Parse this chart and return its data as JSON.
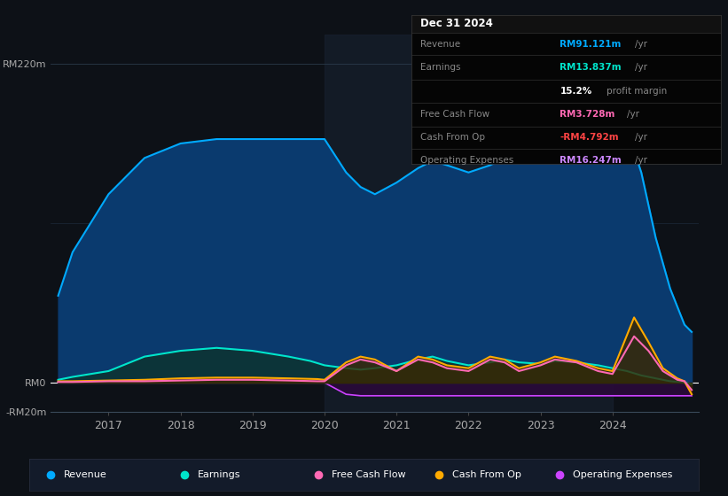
{
  "bg_color": "#0d1117",
  "plot_bg_color": "#0d1117",
  "title_box": {
    "date": "Dec 31 2024",
    "rows": [
      {
        "label": "Revenue",
        "value": "RM91.121m",
        "unit": "/yr",
        "color": "#00aaff"
      },
      {
        "label": "Earnings",
        "value": "RM13.837m",
        "unit": "/yr",
        "color": "#00e5cc"
      },
      {
        "label": "",
        "value": "15.2%",
        "unit": " profit margin",
        "color": "#ffffff"
      },
      {
        "label": "Free Cash Flow",
        "value": "RM3.728m",
        "unit": "/yr",
        "color": "#ff69b4"
      },
      {
        "label": "Cash From Op",
        "value": "-RM4.792m",
        "unit": "/yr",
        "color": "#ff4444"
      },
      {
        "label": "Operating Expenses",
        "value": "RM16.247m",
        "unit": "/yr",
        "color": "#cc88ff"
      }
    ]
  },
  "ylim": [
    -20,
    240
  ],
  "yticks": [
    -20,
    0,
    220
  ],
  "ytick_labels": [
    "-RM20m",
    "RM0",
    "RM220m"
  ],
  "xlim": [
    2016.2,
    2025.2
  ],
  "xticks": [
    2017,
    2018,
    2019,
    2020,
    2021,
    2022,
    2023,
    2024
  ],
  "legend": [
    {
      "label": "Revenue",
      "color": "#00aaff"
    },
    {
      "label": "Earnings",
      "color": "#00e5cc"
    },
    {
      "label": "Free Cash Flow",
      "color": "#ff69b4"
    },
    {
      "label": "Cash From Op",
      "color": "#ffaa00"
    },
    {
      "label": "Operating Expenses",
      "color": "#cc44ff"
    }
  ],
  "revenue": {
    "x": [
      2016.3,
      2016.5,
      2017.0,
      2017.5,
      2018.0,
      2018.5,
      2019.0,
      2019.5,
      2019.9,
      2020.0,
      2020.3,
      2020.5,
      2020.7,
      2021.0,
      2021.3,
      2021.5,
      2021.7,
      2022.0,
      2022.3,
      2022.5,
      2022.8,
      2023.0,
      2023.3,
      2023.5,
      2023.7,
      2024.0,
      2024.2,
      2024.4,
      2024.6,
      2024.8,
      2025.0,
      2025.1
    ],
    "y": [
      60,
      90,
      130,
      155,
      165,
      168,
      168,
      168,
      168,
      168,
      145,
      135,
      130,
      138,
      148,
      153,
      150,
      145,
      150,
      155,
      158,
      162,
      175,
      185,
      188,
      188,
      175,
      145,
      100,
      65,
      40,
      35
    ],
    "color": "#00aaff",
    "fill_color": "#0a3a6e"
  },
  "earnings": {
    "x": [
      2016.3,
      2016.5,
      2017.0,
      2017.5,
      2018.0,
      2018.5,
      2019.0,
      2019.5,
      2019.8,
      2020.0,
      2020.3,
      2020.5,
      2020.7,
      2021.0,
      2021.3,
      2021.5,
      2021.7,
      2022.0,
      2022.3,
      2022.5,
      2022.7,
      2023.0,
      2023.2,
      2023.5,
      2023.8,
      2024.0,
      2024.2,
      2024.4,
      2024.6,
      2024.8,
      2025.0,
      2025.1
    ],
    "y": [
      2,
      4,
      8,
      18,
      22,
      24,
      22,
      18,
      15,
      12,
      10,
      9,
      10,
      12,
      16,
      18,
      15,
      12,
      14,
      16,
      14,
      13,
      15,
      14,
      12,
      10,
      8,
      5,
      3,
      1,
      0,
      -1
    ],
    "color": "#00e5cc",
    "fill_color": "#0d3330"
  },
  "free_cash_flow": {
    "x": [
      2016.3,
      2016.5,
      2017.0,
      2017.5,
      2018.0,
      2018.5,
      2019.0,
      2019.5,
      2019.9,
      2020.0,
      2020.3,
      2020.5,
      2020.7,
      2021.0,
      2021.3,
      2021.5,
      2021.7,
      2022.0,
      2022.3,
      2022.5,
      2022.7,
      2023.0,
      2023.2,
      2023.5,
      2023.8,
      2024.0,
      2024.3,
      2024.5,
      2024.7,
      2024.9,
      2025.0,
      2025.1
    ],
    "y": [
      0.5,
      0.5,
      1,
      1,
      1.5,
      2,
      2,
      1.5,
      1,
      1,
      12,
      16,
      14,
      8,
      16,
      14,
      10,
      8,
      16,
      14,
      8,
      12,
      16,
      14,
      8,
      6,
      32,
      22,
      8,
      2,
      1,
      -5
    ],
    "color": "#ff69b4"
  },
  "cash_from_op": {
    "x": [
      2016.3,
      2016.5,
      2017.0,
      2017.5,
      2018.0,
      2018.5,
      2019.0,
      2019.5,
      2019.9,
      2020.0,
      2020.3,
      2020.5,
      2020.7,
      2021.0,
      2021.3,
      2021.5,
      2021.7,
      2022.0,
      2022.3,
      2022.5,
      2022.7,
      2023.0,
      2023.2,
      2023.5,
      2023.8,
      2024.0,
      2024.3,
      2024.5,
      2024.7,
      2024.9,
      2025.0,
      2025.1
    ],
    "y": [
      1,
      1,
      1.5,
      2,
      3,
      3.5,
      3.5,
      3,
      2.5,
      2,
      14,
      18,
      16,
      8,
      18,
      16,
      12,
      10,
      18,
      16,
      10,
      14,
      18,
      15,
      10,
      8,
      45,
      28,
      10,
      3,
      1,
      -8
    ],
    "color": "#ffaa00",
    "fill_color": "#3a2800"
  },
  "operating_expenses": {
    "x": [
      2016.3,
      2016.5,
      2017.0,
      2017.5,
      2018.0,
      2018.5,
      2019.0,
      2019.5,
      2019.9,
      2020.0,
      2020.3,
      2020.5,
      2020.7,
      2021.0,
      2021.3,
      2021.5,
      2021.7,
      2022.0,
      2022.3,
      2022.5,
      2022.7,
      2023.0,
      2023.2,
      2023.5,
      2023.8,
      2024.0,
      2024.3,
      2024.5,
      2024.7,
      2024.9,
      2025.0,
      2025.1
    ],
    "y": [
      0,
      0,
      0,
      0,
      0,
      0,
      0,
      0,
      0,
      0,
      -8,
      -9,
      -9,
      -9,
      -9,
      -9,
      -9,
      -9,
      -9,
      -9,
      -9,
      -9,
      -9,
      -9,
      -9,
      -9,
      -9,
      -9,
      -9,
      -9,
      -9,
      -9
    ],
    "color": "#cc44ff",
    "fill_color": "#2a0a3a"
  },
  "shaded_region": {
    "x_start": 2020.0,
    "x_end": 2024.0,
    "color": "#1a2535"
  }
}
